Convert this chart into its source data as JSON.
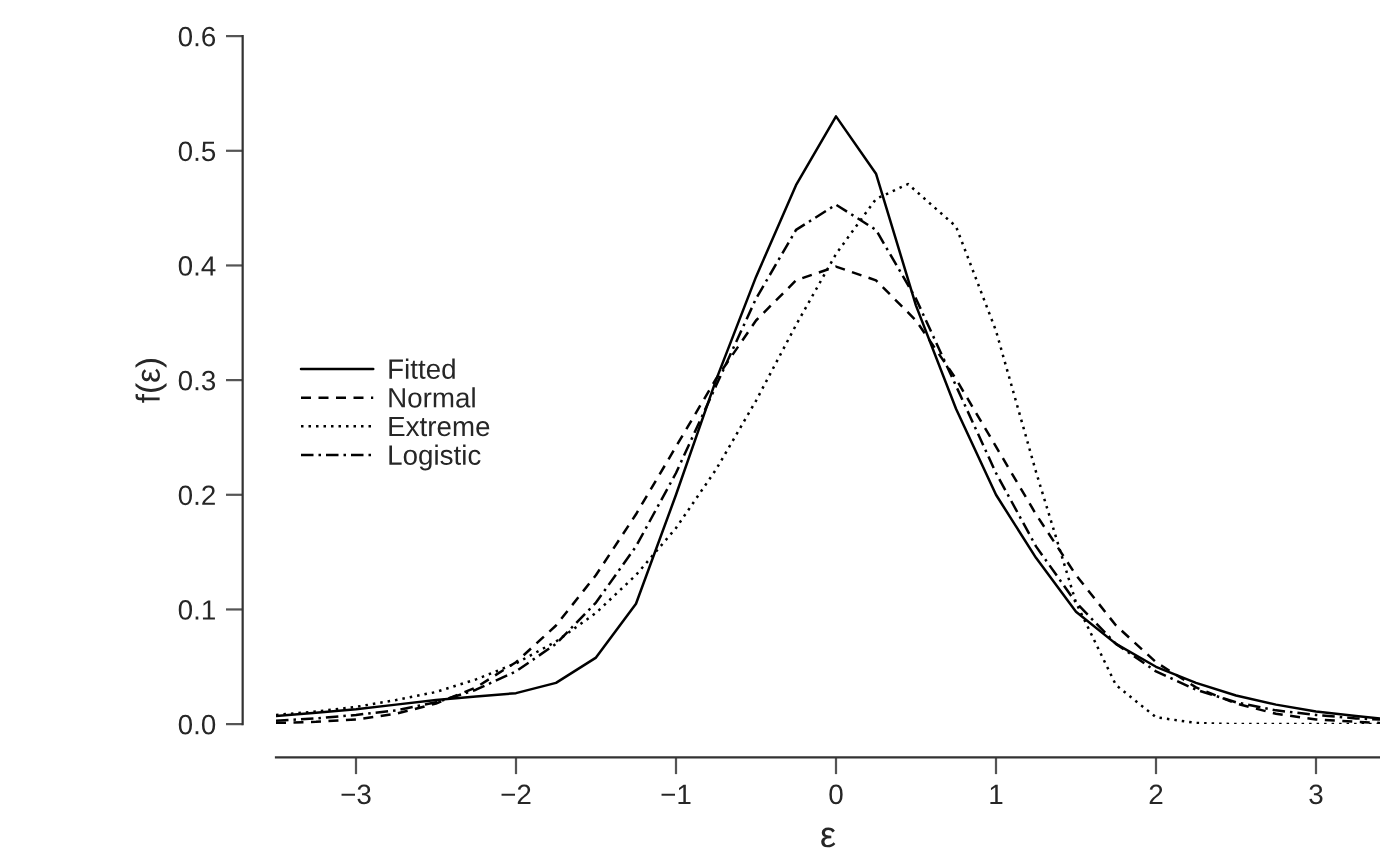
{
  "chart_data": {
    "type": "line",
    "xlabel": "ε",
    "ylabel": "f(ε)",
    "x": [
      -3.5,
      -3.25,
      -3,
      -2.75,
      -2.5,
      -2.25,
      -2,
      -1.75,
      -1.5,
      -1.25,
      -1,
      -0.75,
      -0.5,
      -0.25,
      0,
      0.25,
      0.5,
      0.75,
      1,
      1.25,
      1.5,
      1.75,
      2,
      2.25,
      2.5,
      2.75,
      3,
      3.25,
      3.4
    ],
    "series": [
      {
        "name": "Fitted",
        "color": "#000000",
        "line_style": "solid",
        "values": [
          0.007,
          0.01,
          0.013,
          0.017,
          0.021,
          0.024,
          0.027,
          0.036,
          0.058,
          0.105,
          0.2,
          0.3,
          0.39,
          0.47,
          0.53,
          0.48,
          0.365,
          0.275,
          0.2,
          0.145,
          0.098,
          0.07,
          0.05,
          0.036,
          0.025,
          0.017,
          0.011,
          0.007,
          0.005
        ]
      },
      {
        "name": "Normal",
        "color": "#000000",
        "line_style": "dashed",
        "values": [
          0.001,
          0.002,
          0.004,
          0.009,
          0.018,
          0.032,
          0.054,
          0.086,
          0.13,
          0.183,
          0.242,
          0.301,
          0.352,
          0.387,
          0.399,
          0.387,
          0.352,
          0.301,
          0.242,
          0.183,
          0.13,
          0.086,
          0.054,
          0.032,
          0.018,
          0.009,
          0.004,
          0.002,
          0.001
        ]
      },
      {
        "name": "Extreme",
        "color": "#000000",
        "line_style": "dotted",
        "x": [
          -3.5,
          -3.25,
          -3,
          -2.75,
          -2.5,
          -2.25,
          -2,
          -1.75,
          -1.5,
          -1.25,
          -1,
          -0.75,
          -0.5,
          -0.25,
          0,
          0.25,
          0.45,
          0.75,
          1,
          1.25,
          1.5,
          1.75,
          2,
          2.25,
          2.5,
          2.75,
          3,
          3.25,
          3.4
        ],
        "values": [
          0.008,
          0.011,
          0.015,
          0.021,
          0.028,
          0.039,
          0.053,
          0.072,
          0.097,
          0.13,
          0.171,
          0.222,
          0.282,
          0.348,
          0.41,
          0.458,
          0.471,
          0.434,
          0.343,
          0.22,
          0.106,
          0.034,
          0.006,
          0.001,
          0,
          0,
          0,
          0,
          0
        ]
      },
      {
        "name": "Logistic",
        "color": "#000000",
        "line_style": "dashdot",
        "values": [
          0.003,
          0.005,
          0.008,
          0.012,
          0.019,
          0.03,
          0.046,
          0.07,
          0.106,
          0.155,
          0.219,
          0.295,
          0.371,
          0.431,
          0.453,
          0.431,
          0.371,
          0.295,
          0.219,
          0.155,
          0.106,
          0.07,
          0.046,
          0.03,
          0.019,
          0.012,
          0.008,
          0.005,
          0.004
        ]
      }
    ],
    "xlim": [
      -3.5,
      3.4
    ],
    "ylim": [
      0,
      0.6
    ],
    "xticks": [
      {
        "value": -3,
        "label": "−3"
      },
      {
        "value": -2,
        "label": "−2"
      },
      {
        "value": -1,
        "label": "−1"
      },
      0,
      1,
      2,
      3
    ],
    "yticks": [
      {
        "value": 0,
        "label": "0.0"
      },
      0.1,
      0.2,
      0.3,
      0.4,
      0.5,
      0.6
    ],
    "legend": "left",
    "grid": false
  }
}
